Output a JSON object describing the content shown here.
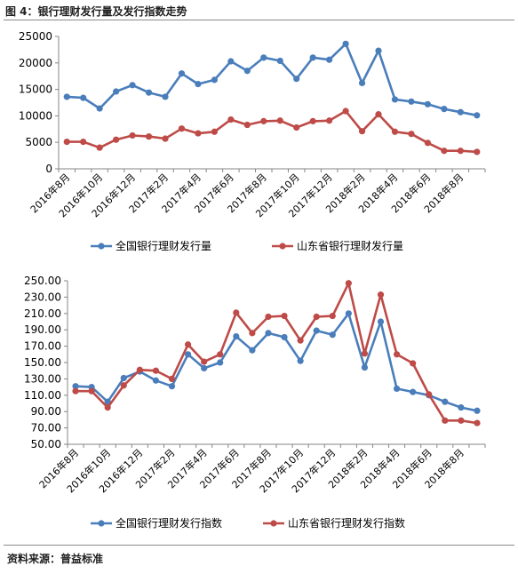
{
  "header": {
    "title": "图 4：银行理财发行量及发行指数走势"
  },
  "footer": {
    "source": "资料来源：普益标准"
  },
  "colors": {
    "blue": "#4a7ebb",
    "red": "#be4b48",
    "axis": "#868686"
  },
  "chart_data": [
    {
      "type": "line",
      "categories": [
        "2016年8月",
        "2016年9月",
        "2016年10月",
        "2016年11月",
        "2016年12月",
        "2017年1月",
        "2017年2月",
        "2017年3月",
        "2017年4月",
        "2017年5月",
        "2017年6月",
        "2017年7月",
        "2017年8月",
        "2017年9月",
        "2017年10月",
        "2017年11月",
        "2017年12月",
        "2018年1月",
        "2018年2月",
        "2018年3月",
        "2018年4月",
        "2018年5月",
        "2018年6月",
        "2018年7月",
        "2018年8月",
        "2018年9月"
      ],
      "tick_labels": [
        "2016年8月",
        "2016年10月",
        "2016年12月",
        "2017年2月",
        "2017年4月",
        "2017年6月",
        "2017年8月",
        "2017年10月",
        "2017年12月",
        "2018年2月",
        "2018年4月",
        "2018年6月",
        "2018年8月"
      ],
      "ylim": [
        0,
        25000
      ],
      "yticks": [
        "0",
        "5000",
        "10000",
        "15000",
        "20000",
        "25000"
      ],
      "series": [
        {
          "name": "全国银行理财发行量",
          "color": "#4a7ebb",
          "values": [
            13600,
            13400,
            11400,
            14600,
            15800,
            14400,
            13600,
            18000,
            16000,
            16800,
            20300,
            18500,
            21000,
            20400,
            17000,
            21000,
            20600,
            23600,
            16200,
            22300,
            13100,
            12700,
            12200,
            11300,
            10700,
            10100
          ]
        },
        {
          "name": "山东省银行理财发行量",
          "color": "#be4b48",
          "values": [
            5100,
            5100,
            4000,
            5500,
            6300,
            6100,
            5700,
            7600,
            6700,
            7000,
            9300,
            8300,
            9000,
            9100,
            7800,
            9000,
            9100,
            10900,
            7100,
            10300,
            7000,
            6600,
            4900,
            3400,
            3400,
            3200
          ]
        }
      ]
    },
    {
      "type": "line",
      "categories": [
        "2016年8月",
        "2016年9月",
        "2016年10月",
        "2016年11月",
        "2016年12月",
        "2017年1月",
        "2017年2月",
        "2017年3月",
        "2017年4月",
        "2017年5月",
        "2017年6月",
        "2017年7月",
        "2017年8月",
        "2017年9月",
        "2017年10月",
        "2017年11月",
        "2017年12月",
        "2018年1月",
        "2018年2月",
        "2018年3月",
        "2018年4月",
        "2018年5月",
        "2018年6月",
        "2018年7月",
        "2018年8月",
        "2018年9月"
      ],
      "tick_labels": [
        "2016年8月",
        "2016年10月",
        "2016年12月",
        "2017年2月",
        "2017年4月",
        "2017年6月",
        "2017年8月",
        "2017年10月",
        "2017年12月",
        "2018年2月",
        "2018年4月",
        "2018年6月",
        "2018年8月"
      ],
      "ylim": [
        50,
        250
      ],
      "yticks": [
        "50.00",
        "70.00",
        "90.00",
        "110.00",
        "130.00",
        "150.00",
        "170.00",
        "190.00",
        "210.00",
        "230.00",
        "250.00"
      ],
      "series": [
        {
          "name": "全国银行理财发行指数",
          "color": "#4a7ebb",
          "values": [
            121,
            120,
            102,
            131,
            139,
            128,
            121,
            160,
            143,
            150,
            182,
            165,
            186,
            181,
            152,
            189,
            184,
            210,
            144,
            200,
            118,
            114,
            110,
            102,
            95,
            91
          ]
        },
        {
          "name": "山东省银行理财发行指数",
          "color": "#be4b48",
          "values": [
            115,
            115,
            95,
            122,
            141,
            140,
            130,
            172,
            151,
            160,
            211,
            186,
            206,
            207,
            177,
            206,
            207,
            247,
            161,
            233,
            160,
            149,
            111,
            79,
            79,
            76
          ]
        }
      ]
    }
  ]
}
